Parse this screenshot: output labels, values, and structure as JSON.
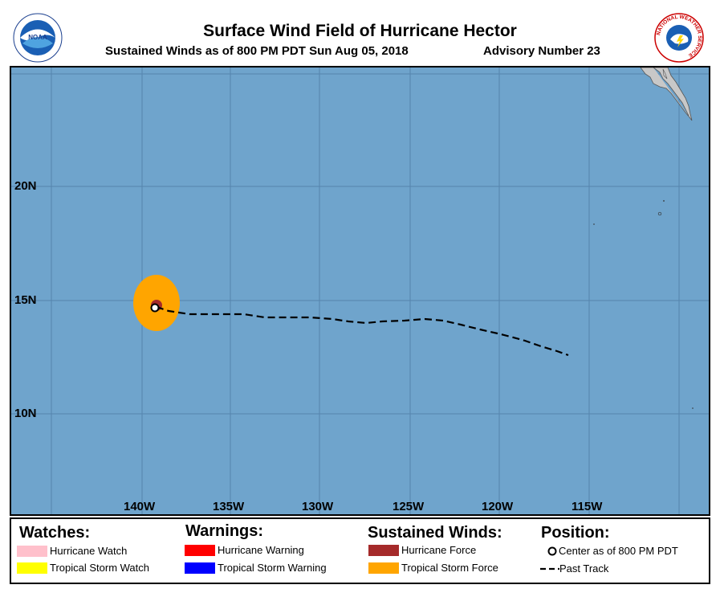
{
  "header": {
    "title": "Surface Wind Field of Hurricane Hector",
    "subtitle": "Sustained Winds as of 800 PM PDT Sun Aug 05, 2018",
    "advisory": "Advisory Number 23",
    "noaa_logo_text": "NOAA",
    "nws_logo_text": "NATIONAL WEATHER SERVICE"
  },
  "map": {
    "lat_labels": [
      "20N",
      "15N",
      "10N"
    ],
    "lon_labels": [
      "140W",
      "135W",
      "130W",
      "125W",
      "120W",
      "115W"
    ],
    "ocean_color": "#6fa4cc",
    "land_color": "#c8c8c8",
    "tropical_storm_force_color": "#ffa500",
    "hurricane_force_color": "#a52a2a"
  },
  "legend": {
    "watches": {
      "heading": "Watches:",
      "items": [
        {
          "label": "Hurricane Watch",
          "color": "#ffc0cb"
        },
        {
          "label": "Tropical Storm Watch",
          "color": "#ffff00"
        }
      ]
    },
    "warnings": {
      "heading": "Warnings:",
      "items": [
        {
          "label": "Hurricane Warning",
          "color": "#ff0000"
        },
        {
          "label": "Tropical Storm Warning",
          "color": "#0000ff"
        }
      ]
    },
    "winds": {
      "heading": "Sustained Winds:",
      "items": [
        {
          "label": "Hurricane Force",
          "color": "#a52a2a"
        },
        {
          "label": "Tropical Storm Force",
          "color": "#ffa500"
        }
      ]
    },
    "position": {
      "heading": "Position:",
      "center_label": "Center as of 800 PM PDT",
      "track_label": "Past Track"
    }
  }
}
